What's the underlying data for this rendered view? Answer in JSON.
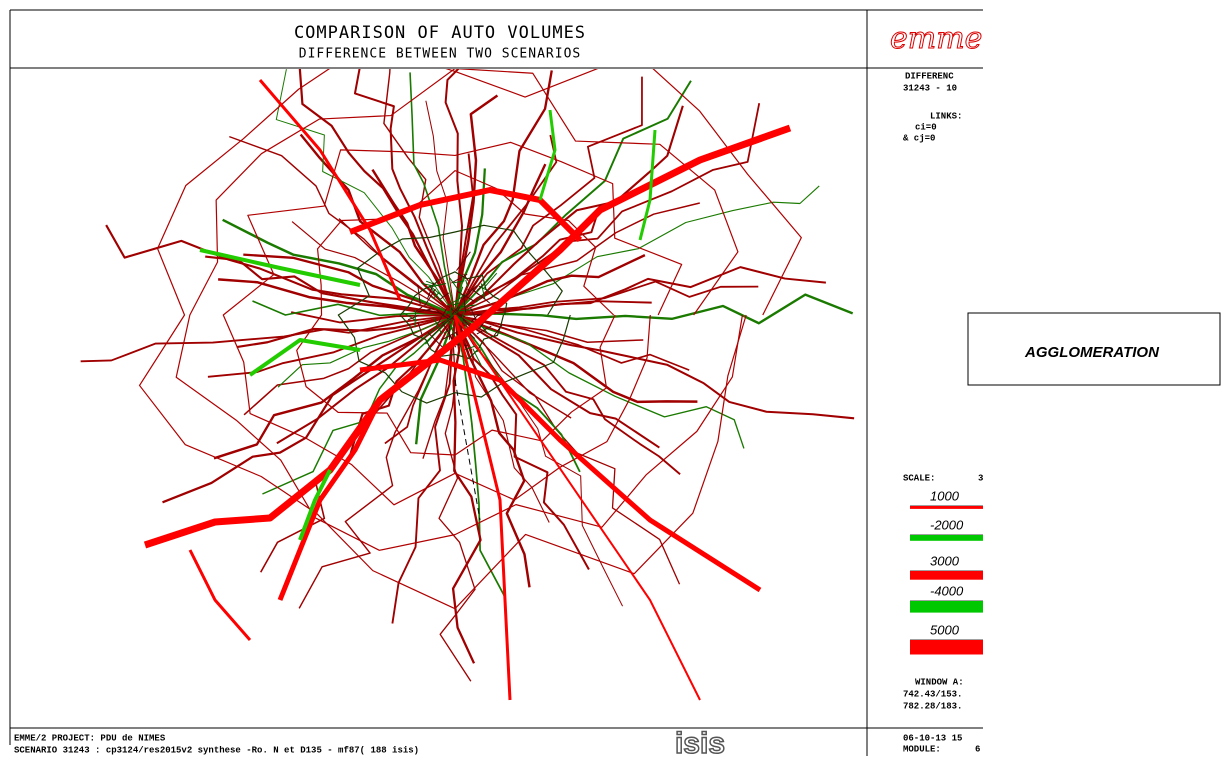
{
  "header": {
    "title": "COMPARISON OF AUTO VOLUMES",
    "subtitle": "DIFFERENCE BETWEEN TWO SCENARIOS",
    "logo": "emme"
  },
  "panel": {
    "difference": "DIFFERENC",
    "scenarios": "31243 - 10",
    "links": "LINKS:",
    "ci": "ci=0",
    "cj": "& cj=0",
    "scale_title": "SCALE:",
    "scale_value": 3,
    "legend": [
      {
        "value": 1000,
        "color": "#ff0000"
      },
      {
        "value": -2000,
        "color": "#00c800"
      },
      {
        "value": 3000,
        "color": "#ff0000"
      },
      {
        "value": -4000,
        "color": "#00c800"
      },
      {
        "value": 5000,
        "color": "#ff0000"
      }
    ],
    "window_title": "WINDOW A:",
    "window_1": "742.43/153.",
    "window_2": "782.28/183.",
    "date": "06-10-13 15",
    "module": "MODULE:",
    "module_value": 6
  },
  "callout": "AGGLOMERATION",
  "footer": {
    "project": "EMME/2 PROJECT: PDU de NIMES",
    "scenario": "SCENARIO 31243 : cp3124/res2015v2 synthese -Ro. N et D135 - mf87( 188 isis)",
    "logo": "isis"
  }
}
